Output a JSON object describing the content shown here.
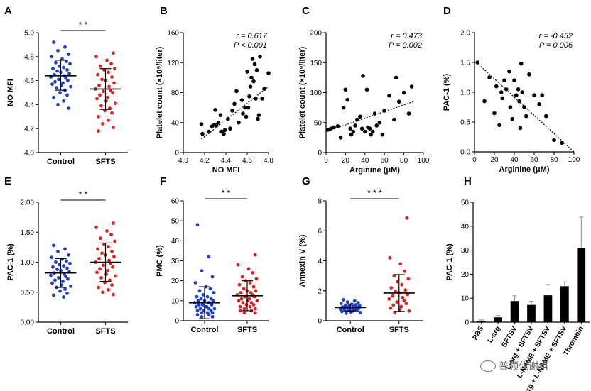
{
  "chart_data": [
    {
      "panel": "A",
      "type": "scatter",
      "xlabel": "",
      "ylabel": "NO MFI",
      "categories": [
        "Control",
        "SFTS"
      ],
      "ylim": [
        4.0,
        5.0
      ],
      "yticks": [
        "4.0",
        "4.2",
        "4.4",
        "4.6",
        "4.8",
        "5.0"
      ],
      "significance": "* *",
      "series": [
        {
          "color": "#1f3fc4",
          "mean": 4.64,
          "sd_low": 4.52,
          "sd_high": 4.77,
          "values": [
            4.92,
            4.88,
            4.85,
            4.82,
            4.8,
            4.78,
            4.76,
            4.75,
            4.74,
            4.72,
            4.71,
            4.7,
            4.69,
            4.68,
            4.67,
            4.66,
            4.65,
            4.64,
            4.63,
            4.62,
            4.61,
            4.6,
            4.59,
            4.58,
            4.57,
            4.56,
            4.55,
            4.54,
            4.52,
            4.5,
            4.48,
            4.46,
            4.43,
            4.4,
            4.37
          ]
        },
        {
          "color": "#e01f1f",
          "mean": 4.53,
          "sd_low": 4.36,
          "sd_high": 4.7,
          "values": [
            4.83,
            4.8,
            4.77,
            4.74,
            4.72,
            4.7,
            4.69,
            4.67,
            4.65,
            4.63,
            4.61,
            4.6,
            4.58,
            4.56,
            4.55,
            4.53,
            4.52,
            4.51,
            4.5,
            4.48,
            4.46,
            4.45,
            4.43,
            4.41,
            4.39,
            4.37,
            4.35,
            4.33,
            4.3,
            4.27,
            4.24,
            4.21,
            4.18
          ]
        }
      ]
    },
    {
      "panel": "B",
      "type": "scatter",
      "xlabel": "NO MFI",
      "ylabel": "Platelet count (×10⁹/liter)",
      "xlim": [
        4.0,
        4.8
      ],
      "xticks": [
        "4.0",
        "4.2",
        "4.4",
        "4.6",
        "4.8"
      ],
      "ylim": [
        0,
        160
      ],
      "yticks": [
        "0",
        "40",
        "80",
        "120",
        "160"
      ],
      "stat_r": "r = 0.617",
      "stat_p": "P < 0.001",
      "trend": [
        [
          4.17,
          18
        ],
        [
          4.8,
          88
        ]
      ],
      "points": [
        [
          4.17,
          38
        ],
        [
          4.18,
          25
        ],
        [
          4.24,
          28
        ],
        [
          4.27,
          35
        ],
        [
          4.29,
          37
        ],
        [
          4.3,
          57
        ],
        [
          4.31,
          36
        ],
        [
          4.33,
          40
        ],
        [
          4.35,
          50
        ],
        [
          4.36,
          28
        ],
        [
          4.38,
          25
        ],
        [
          4.39,
          30
        ],
        [
          4.42,
          45
        ],
        [
          4.44,
          32
        ],
        [
          4.46,
          56
        ],
        [
          4.48,
          65
        ],
        [
          4.5,
          82
        ],
        [
          4.52,
          40
        ],
        [
          4.55,
          70
        ],
        [
          4.56,
          52
        ],
        [
          4.58,
          60
        ],
        [
          4.59,
          48
        ],
        [
          4.6,
          108
        ],
        [
          4.61,
          60
        ],
        [
          4.62,
          75
        ],
        [
          4.63,
          88
        ],
        [
          4.64,
          100
        ],
        [
          4.65,
          125
        ],
        [
          4.66,
          95
        ],
        [
          4.67,
          118
        ],
        [
          4.68,
          72
        ],
        [
          4.69,
          110
        ],
        [
          4.7,
          45
        ],
        [
          4.71,
          50
        ],
        [
          4.72,
          128
        ],
        [
          4.74,
          72
        ],
        [
          4.76,
          85
        ],
        [
          4.8,
          106
        ]
      ]
    },
    {
      "panel": "C",
      "type": "scatter",
      "xlabel": "Arginine (μM)",
      "ylabel": "Platelet count (×10⁹/liter)",
      "xlim": [
        0,
        100
      ],
      "xticks": [
        "0",
        "20",
        "40",
        "60",
        "80",
        "100"
      ],
      "ylim": [
        0,
        200
      ],
      "yticks": [
        "0",
        "50",
        "100",
        "150",
        "200"
      ],
      "stat_r": "r = 0.473",
      "stat_p": "P = 0.002",
      "trend": [
        [
          0,
          35
        ],
        [
          90,
          85
        ]
      ],
      "points": [
        [
          2,
          38
        ],
        [
          5,
          40
        ],
        [
          8,
          42
        ],
        [
          12,
          44
        ],
        [
          15,
          25
        ],
        [
          18,
          75
        ],
        [
          20,
          105
        ],
        [
          22,
          88
        ],
        [
          25,
          40
        ],
        [
          26,
          30
        ],
        [
          28,
          35
        ],
        [
          30,
          45
        ],
        [
          32,
          55
        ],
        [
          35,
          60
        ],
        [
          37,
          40
        ],
        [
          38,
          128
        ],
        [
          40,
          35
        ],
        [
          42,
          105
        ],
        [
          43,
          42
        ],
        [
          45,
          40
        ],
        [
          46,
          30
        ],
        [
          48,
          35
        ],
        [
          50,
          65
        ],
        [
          52,
          45
        ],
        [
          55,
          50
        ],
        [
          58,
          30
        ],
        [
          60,
          70
        ],
        [
          65,
          95
        ],
        [
          70,
          55
        ],
        [
          72,
          125
        ],
        [
          75,
          85
        ],
        [
          80,
          100
        ],
        [
          85,
          65
        ],
        [
          88,
          110
        ]
      ]
    },
    {
      "panel": "D",
      "type": "scatter",
      "xlabel": "Arginine (μM)",
      "ylabel": "PAC-1 (%)",
      "xlim": [
        0,
        100
      ],
      "xticks": [
        "0",
        "20",
        "40",
        "60",
        "80",
        "100"
      ],
      "ylim": [
        0,
        2.0
      ],
      "yticks": [
        "0.0",
        "0.5",
        "1.0",
        "1.5",
        "2.0"
      ],
      "stat_r": "r = -0.452",
      "stat_p": "P = 0.006",
      "trend": [
        [
          2,
          1.5
        ],
        [
          100,
          0.0
        ]
      ],
      "points": [
        [
          3,
          1.5
        ],
        [
          10,
          0.85
        ],
        [
          15,
          1.25
        ],
        [
          20,
          0.65
        ],
        [
          22,
          1.1
        ],
        [
          25,
          0.45
        ],
        [
          27,
          1.0
        ],
        [
          28,
          0.9
        ],
        [
          30,
          1.2
        ],
        [
          32,
          1.05
        ],
        [
          35,
          1.35
        ],
        [
          36,
          0.75
        ],
        [
          38,
          0.55
        ],
        [
          40,
          1.2
        ],
        [
          42,
          0.95
        ],
        [
          44,
          1.05
        ],
        [
          45,
          0.85
        ],
        [
          46,
          0.4
        ],
        [
          47,
          1.48
        ],
        [
          48,
          1.0
        ],
        [
          50,
          0.75
        ],
        [
          52,
          0.6
        ],
        [
          55,
          1.3
        ],
        [
          60,
          0.95
        ],
        [
          65,
          0.8
        ],
        [
          68,
          0.95
        ],
        [
          72,
          0.6
        ],
        [
          80,
          0.2
        ],
        [
          88,
          0.15
        ]
      ]
    },
    {
      "panel": "E",
      "type": "scatter",
      "xlabel": "",
      "ylabel": "PAC-1 (%)",
      "categories": [
        "Control",
        "SFTS"
      ],
      "ylim": [
        0,
        2.0
      ],
      "yticks": [
        "0.00",
        "0.50",
        "1.00",
        "1.50",
        "2.00"
      ],
      "significance": "* *",
      "series": [
        {
          "color": "#1f3fc4",
          "mean": 0.82,
          "sd_low": 0.58,
          "sd_high": 1.06,
          "values": [
            1.28,
            1.22,
            1.18,
            1.12,
            1.08,
            1.05,
            1.02,
            1.0,
            0.98,
            0.96,
            0.94,
            0.92,
            0.9,
            0.88,
            0.86,
            0.84,
            0.82,
            0.8,
            0.78,
            0.76,
            0.74,
            0.72,
            0.7,
            0.68,
            0.65,
            0.62,
            0.6,
            0.58,
            0.55,
            0.52,
            0.48,
            0.45,
            0.42
          ]
        },
        {
          "color": "#e01f1f",
          "mean": 1.0,
          "sd_low": 0.68,
          "sd_high": 1.32,
          "values": [
            1.65,
            1.58,
            1.52,
            1.46,
            1.4,
            1.35,
            1.3,
            1.26,
            1.22,
            1.18,
            1.15,
            1.12,
            1.09,
            1.06,
            1.03,
            1.0,
            0.98,
            0.95,
            0.92,
            0.89,
            0.86,
            0.83,
            0.8,
            0.77,
            0.74,
            0.7,
            0.66,
            0.62,
            0.58,
            0.54,
            0.5,
            0.46
          ]
        }
      ]
    },
    {
      "panel": "F",
      "type": "scatter",
      "xlabel": "",
      "ylabel": "PMC (%)",
      "categories": [
        "Control",
        "SFTS"
      ],
      "ylim": [
        0,
        60
      ],
      "yticks": [
        "0",
        "10",
        "20",
        "30",
        "40",
        "50",
        "60"
      ],
      "significance": "* *",
      "series": [
        {
          "color": "#1f3fc4",
          "mean": 9.0,
          "sd_low": 1.0,
          "sd_high": 17.0,
          "values": [
            48,
            32,
            25,
            22,
            19,
            17,
            16,
            15,
            14,
            13,
            12,
            12,
            11,
            11,
            10,
            10,
            10,
            9,
            9,
            9,
            8,
            8,
            8,
            7,
            7,
            7,
            6,
            6,
            6,
            5,
            5,
            5,
            4,
            4,
            4,
            3,
            3,
            2,
            2
          ]
        },
        {
          "color": "#e01f1f",
          "mean": 12.5,
          "sd_low": 5.0,
          "sd_high": 20.0,
          "values": [
            33,
            28,
            26,
            24,
            22,
            21,
            20,
            19,
            18,
            17,
            16,
            15,
            15,
            14,
            14,
            13,
            13,
            12,
            12,
            11,
            11,
            10,
            10,
            10,
            9,
            9,
            8,
            8,
            7,
            7,
            6,
            6,
            5,
            5,
            4,
            4
          ]
        }
      ]
    },
    {
      "panel": "G",
      "type": "scatter",
      "xlabel": "",
      "ylabel": "Annexin V (%)",
      "categories": [
        "Control",
        "SFTS"
      ],
      "ylim": [
        0,
        8
      ],
      "yticks": [
        "0",
        "2",
        "4",
        "6",
        "8"
      ],
      "significance": "* * *",
      "series": [
        {
          "color": "#1f3fc4",
          "mean": 0.88,
          "sd_low": 0.65,
          "sd_high": 1.12,
          "values": [
            1.4,
            1.32,
            1.25,
            1.2,
            1.15,
            1.1,
            1.06,
            1.02,
            1.0,
            0.98,
            0.95,
            0.92,
            0.9,
            0.88,
            0.86,
            0.84,
            0.82,
            0.8,
            0.78,
            0.75,
            0.72,
            0.7,
            0.68,
            0.65,
            0.62,
            0.58,
            0.55,
            0.5
          ]
        },
        {
          "color": "#e01f1f",
          "mean": 1.85,
          "sd_low": 0.62,
          "sd_high": 3.08,
          "values": [
            6.85,
            4.2,
            3.8,
            3.3,
            3.0,
            2.8,
            2.6,
            2.4,
            2.2,
            2.05,
            1.95,
            1.85,
            1.75,
            1.65,
            1.55,
            1.45,
            1.35,
            1.25,
            1.15,
            1.05,
            0.95,
            0.85,
            0.75,
            0.65,
            0.55
          ]
        }
      ]
    },
    {
      "panel": "H",
      "type": "bar",
      "xlabel": "",
      "ylabel": "PAC-1 (%)",
      "ylim": [
        0,
        50
      ],
      "yticks": [
        "0",
        "10",
        "20",
        "30",
        "40",
        "50"
      ],
      "categories": [
        "PBS",
        "L-arg",
        "SFTSV",
        "L-arg + SFTSV",
        "L-NAME + SFTSV",
        "L-arg + L-NAME + SFTSV",
        "Thrombin"
      ],
      "values": [
        0.6,
        2.0,
        8.8,
        7.2,
        11.2,
        15.0,
        31.0
      ],
      "errors": [
        0.3,
        0.7,
        2.2,
        1.5,
        4.5,
        1.8,
        12.8
      ]
    }
  ],
  "watermark": "普领代谢组"
}
